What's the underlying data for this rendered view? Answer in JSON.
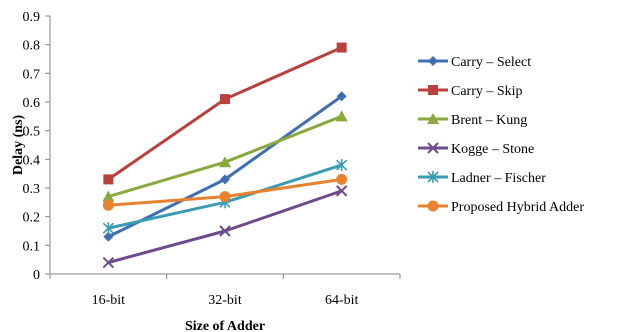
{
  "chart_data": {
    "type": "line",
    "title": "",
    "xlabel": "Size of Adder",
    "ylabel": "Delay (ns)",
    "categories": [
      "16-bit",
      "32-bit",
      "64-bit"
    ],
    "ylim": [
      0,
      0.9
    ],
    "yticks": [
      "0",
      "0.1",
      "0.2",
      "0.3",
      "0.4",
      "0.5",
      "0.6",
      "0.7",
      "0.8",
      "0.9"
    ],
    "grid": false,
    "legend_position": "right",
    "series": [
      {
        "name": "Carry – Select",
        "values": [
          0.13,
          0.33,
          0.62
        ],
        "color": "#3F6FB2",
        "marker": "diamond"
      },
      {
        "name": "Carry – Skip",
        "values": [
          0.33,
          0.61,
          0.79
        ],
        "color": "#B9403D",
        "marker": "square"
      },
      {
        "name": "Brent – Kung",
        "values": [
          0.27,
          0.39,
          0.55
        ],
        "color": "#89A93F",
        "marker": "triangle"
      },
      {
        "name": "Kogge – Stone",
        "values": [
          0.04,
          0.15,
          0.29
        ],
        "color": "#6C4C8C",
        "marker": "x"
      },
      {
        "name": "Ladner – Fischer",
        "values": [
          0.16,
          0.25,
          0.38
        ],
        "color": "#3A9BB3",
        "marker": "star"
      },
      {
        "name": "Proposed Hybrid Adder",
        "values": [
          0.24,
          0.27,
          0.33
        ],
        "color": "#E7822F",
        "marker": "circle"
      }
    ]
  }
}
